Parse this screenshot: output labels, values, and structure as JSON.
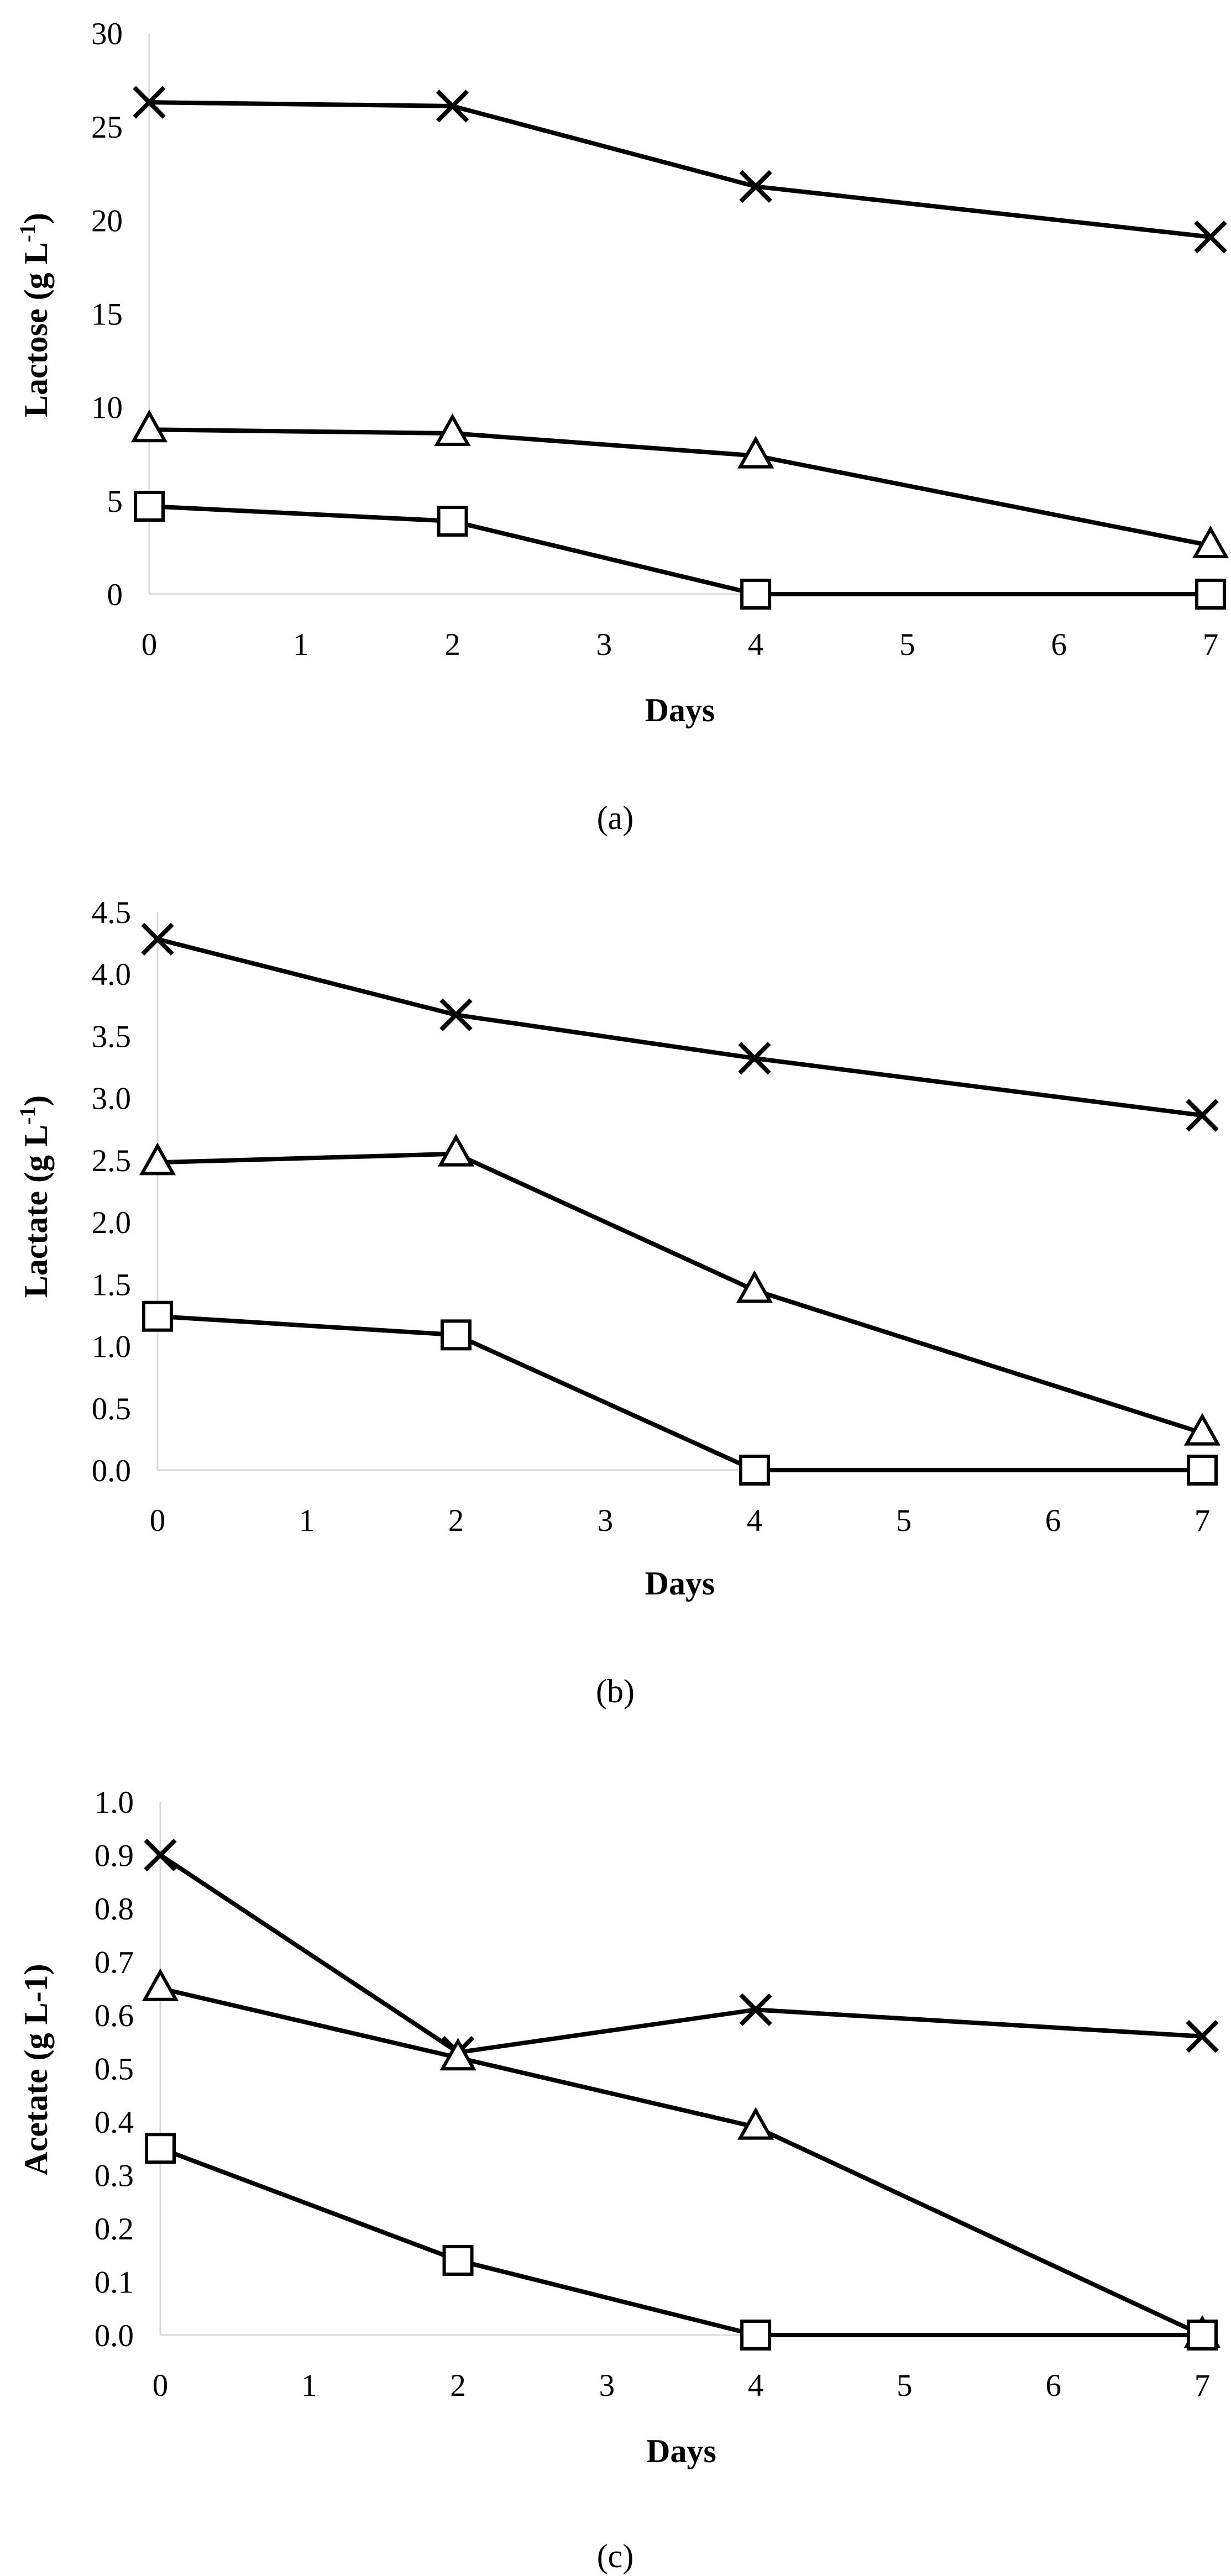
{
  "chart_data": [
    {
      "type": "line",
      "panel": "(a)",
      "xlabel": "Days",
      "ylabel": "Lactose (g L",
      "ylabel_sup": "-1",
      "ylabel_close": ")",
      "xlim": [
        0,
        7
      ],
      "ylim": [
        0,
        30
      ],
      "xticks": [
        0,
        1,
        2,
        3,
        4,
        5,
        6,
        7
      ],
      "yticks": [
        0,
        5,
        10,
        15,
        20,
        25,
        30
      ],
      "ytick_labels": [
        "0",
        "5",
        "10",
        "15",
        "20",
        "25",
        "30"
      ],
      "x": [
        0,
        2,
        4,
        7
      ],
      "series": [
        {
          "marker": "x",
          "values": [
            26.3,
            26.1,
            21.8,
            19.1
          ]
        },
        {
          "marker": "triangle",
          "values": [
            8.8,
            8.6,
            7.4,
            2.6
          ]
        },
        {
          "marker": "square",
          "values": [
            4.7,
            3.9,
            0.0,
            0.0
          ]
        }
      ]
    },
    {
      "type": "line",
      "panel": "(b)",
      "xlabel": "Days",
      "ylabel": "Lactate (g L",
      "ylabel_sup": "-1",
      "ylabel_close": ")",
      "xlim": [
        0,
        7
      ],
      "ylim": [
        0,
        4.5
      ],
      "xticks": [
        0,
        1,
        2,
        3,
        4,
        5,
        6,
        7
      ],
      "yticks": [
        0,
        0.5,
        1,
        1.5,
        2,
        2.5,
        3,
        3.5,
        4,
        4.5
      ],
      "ytick_labels": [
        "0.0",
        "0.5",
        "1.0",
        "1.5",
        "2.0",
        "2.5",
        "3.0",
        "3.5",
        "4.0",
        "4.5"
      ],
      "x": [
        0,
        2,
        4,
        7
      ],
      "series": [
        {
          "marker": "x",
          "values": [
            4.28,
            3.67,
            3.32,
            2.86
          ]
        },
        {
          "marker": "triangle",
          "values": [
            2.48,
            2.55,
            1.45,
            0.3
          ]
        },
        {
          "marker": "square",
          "values": [
            1.24,
            1.09,
            0.0,
            0.0
          ]
        }
      ]
    },
    {
      "type": "line",
      "panel": "(c)",
      "xlabel": "Days",
      "ylabel": "Acetate (g L-1)",
      "ylabel_sup": "",
      "ylabel_close": "",
      "xlim": [
        0,
        7
      ],
      "ylim": [
        0,
        1.0
      ],
      "xticks": [
        0,
        1,
        2,
        3,
        4,
        5,
        6,
        7
      ],
      "yticks": [
        0,
        0.1,
        0.2,
        0.3,
        0.4,
        0.5,
        0.6,
        0.7,
        0.8,
        0.9,
        1.0
      ],
      "ytick_labels": [
        "0.0",
        "0.1",
        "0.2",
        "0.3",
        "0.4",
        "0.5",
        "0.6",
        "0.7",
        "0.8",
        "0.9",
        "1.0"
      ],
      "x": [
        0,
        2,
        4,
        7
      ],
      "series": [
        {
          "marker": "x",
          "values": [
            0.9,
            0.53,
            0.61,
            0.56
          ]
        },
        {
          "marker": "triangle",
          "values": [
            0.65,
            0.52,
            0.39,
            0.0
          ]
        },
        {
          "marker": "square",
          "values": [
            0.35,
            0.14,
            0.0,
            0.0
          ]
        }
      ]
    }
  ]
}
